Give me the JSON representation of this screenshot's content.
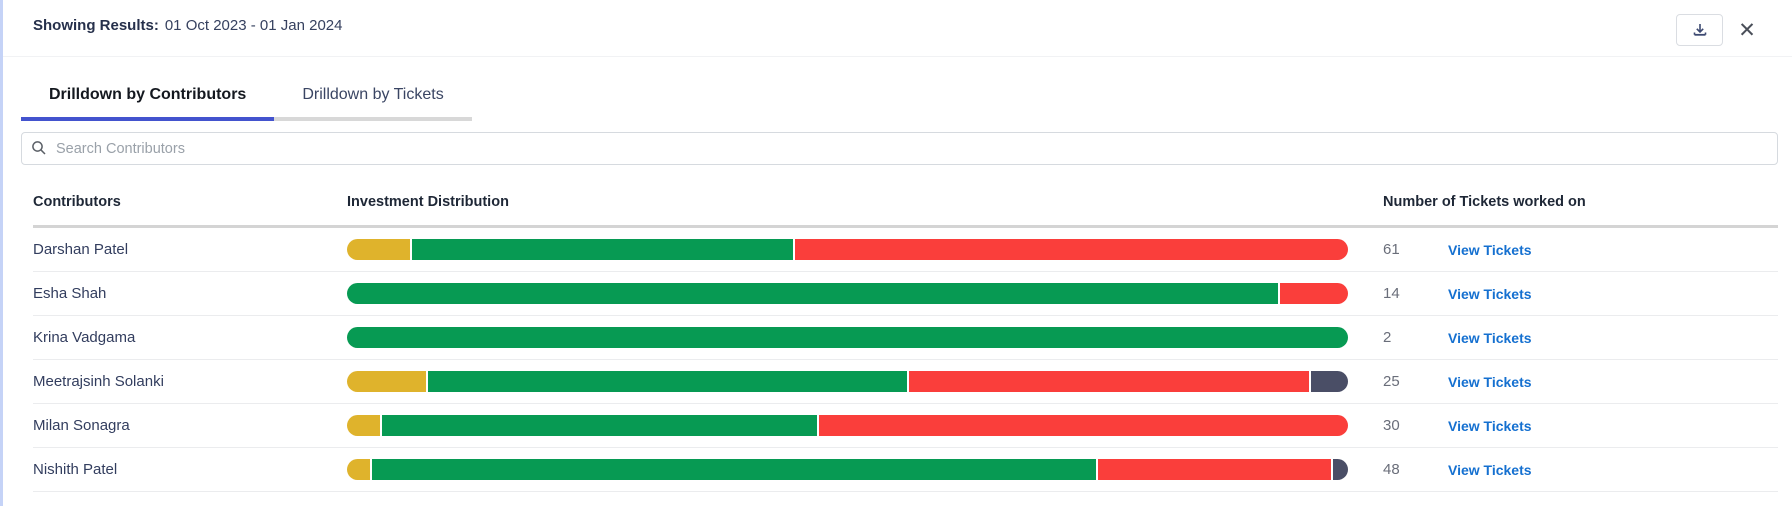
{
  "header": {
    "label": "Showing Results:",
    "value": "01 Oct 2023 - 01 Jan 2024",
    "close_glyph": "✕"
  },
  "tabs": [
    {
      "label": "Drilldown by Contributors",
      "active": true
    },
    {
      "label": "Drilldown by Tickets",
      "active": false
    }
  ],
  "search": {
    "placeholder": "Search Contributors",
    "value": "",
    "icon": "search-icon"
  },
  "table": {
    "columns": [
      "Contributors",
      "Investment Distribution",
      "Number of Tickets worked on"
    ],
    "link_label": "View Tickets",
    "rows": [
      {
        "name": "Darshan Patel",
        "tickets": "61",
        "segments": [
          {
            "color": "yellow",
            "pct": 6.3
          },
          {
            "color": "green",
            "pct": 38.2
          },
          {
            "color": "red",
            "pct": 55.5
          }
        ]
      },
      {
        "name": "Esha Shah",
        "tickets": "14",
        "segments": [
          {
            "color": "green",
            "pct": 93.2
          },
          {
            "color": "red",
            "pct": 6.8
          }
        ]
      },
      {
        "name": "Krina Vadgama",
        "tickets": "2",
        "segments": [
          {
            "color": "green",
            "pct": 100
          }
        ]
      },
      {
        "name": "Meetrajsinh Solanki",
        "tickets": "25",
        "segments": [
          {
            "color": "yellow",
            "pct": 7.9
          },
          {
            "color": "green",
            "pct": 48.2
          },
          {
            "color": "red",
            "pct": 40.2
          },
          {
            "color": "slate",
            "pct": 3.7
          }
        ]
      },
      {
        "name": "Milan Sonagra",
        "tickets": "30",
        "segments": [
          {
            "color": "yellow",
            "pct": 3.3
          },
          {
            "color": "green",
            "pct": 43.6
          },
          {
            "color": "red",
            "pct": 53.1
          }
        ]
      },
      {
        "name": "Nishith Patel",
        "tickets": "48",
        "segments": [
          {
            "color": "yellow",
            "pct": 2.3
          },
          {
            "color": "green",
            "pct": 72.8
          },
          {
            "color": "red",
            "pct": 23.4
          },
          {
            "color": "slate",
            "pct": 1.5
          }
        ]
      }
    ]
  },
  "colors": {
    "yellow": "#DFB32C",
    "green": "#079A53",
    "red": "#FA3E3B",
    "slate": "#4A4E66",
    "link_blue": "#1570D0",
    "tab_underline": "#4353CE",
    "left_border": "#C5D3F7"
  }
}
